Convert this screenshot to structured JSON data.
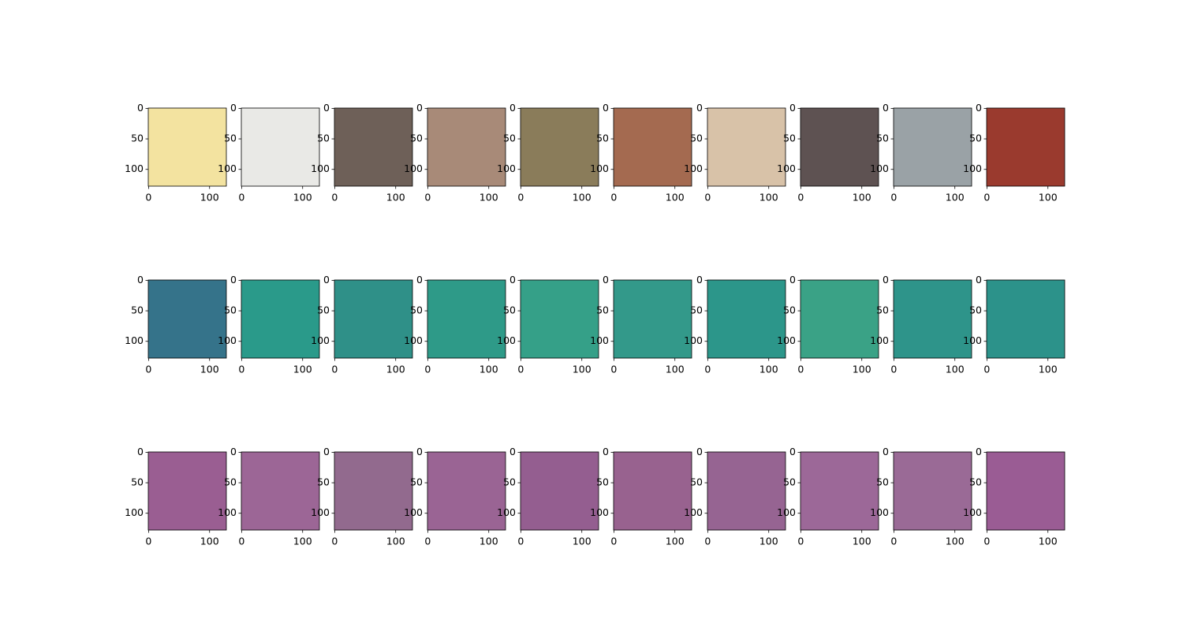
{
  "chart_data": [
    {
      "type": "image",
      "color": "#f3e3a0",
      "xlim": [
        -0.5,
        127.5
      ],
      "ylim": [
        127.5,
        -0.5
      ],
      "xticks": [
        0,
        100
      ],
      "yticks": [
        0,
        50,
        100
      ]
    },
    {
      "type": "image",
      "color": "#e9e9e6",
      "xlim": [
        -0.5,
        127.5
      ],
      "ylim": [
        127.5,
        -0.5
      ],
      "xticks": [
        0,
        100
      ],
      "yticks": [
        0,
        50,
        100
      ]
    },
    {
      "type": "image",
      "color": "#6e6058",
      "xlim": [
        -0.5,
        127.5
      ],
      "ylim": [
        127.5,
        -0.5
      ],
      "xticks": [
        0,
        100
      ],
      "yticks": [
        0,
        50,
        100
      ]
    },
    {
      "type": "image",
      "color": "#a88a78",
      "xlim": [
        -0.5,
        127.5
      ],
      "ylim": [
        127.5,
        -0.5
      ],
      "xticks": [
        0,
        100
      ],
      "yticks": [
        0,
        50,
        100
      ]
    },
    {
      "type": "image",
      "color": "#8a7c5a",
      "xlim": [
        -0.5,
        127.5
      ],
      "ylim": [
        127.5,
        -0.5
      ],
      "xticks": [
        0,
        100
      ],
      "yticks": [
        0,
        50,
        100
      ]
    },
    {
      "type": "image",
      "color": "#a46a50",
      "xlim": [
        -0.5,
        127.5
      ],
      "ylim": [
        127.5,
        -0.5
      ],
      "xticks": [
        0,
        100
      ],
      "yticks": [
        0,
        50,
        100
      ]
    },
    {
      "type": "image",
      "color": "#d8c2a8",
      "xlim": [
        -0.5,
        127.5
      ],
      "ylim": [
        127.5,
        -0.5
      ],
      "xticks": [
        0,
        100
      ],
      "yticks": [
        0,
        50,
        100
      ]
    },
    {
      "type": "image",
      "color": "#5e5252",
      "xlim": [
        -0.5,
        127.5
      ],
      "ylim": [
        127.5,
        -0.5
      ],
      "xticks": [
        0,
        100
      ],
      "yticks": [
        0,
        50,
        100
      ]
    },
    {
      "type": "image",
      "color": "#9aa2a6",
      "xlim": [
        -0.5,
        127.5
      ],
      "ylim": [
        127.5,
        -0.5
      ],
      "xticks": [
        0,
        100
      ],
      "yticks": [
        0,
        50,
        100
      ]
    },
    {
      "type": "image",
      "color": "#9a3a2e",
      "xlim": [
        -0.5,
        127.5
      ],
      "ylim": [
        127.5,
        -0.5
      ],
      "xticks": [
        0,
        100
      ],
      "yticks": [
        0,
        50,
        100
      ]
    },
    {
      "type": "image",
      "color": "#35738a",
      "xlim": [
        -0.5,
        127.5
      ],
      "ylim": [
        127.5,
        -0.5
      ],
      "xticks": [
        0,
        100
      ],
      "yticks": [
        0,
        50,
        100
      ]
    },
    {
      "type": "image",
      "color": "#2a9a8a",
      "xlim": [
        -0.5,
        127.5
      ],
      "ylim": [
        127.5,
        -0.5
      ],
      "xticks": [
        0,
        100
      ],
      "yticks": [
        0,
        50,
        100
      ]
    },
    {
      "type": "image",
      "color": "#2f9088",
      "xlim": [
        -0.5,
        127.5
      ],
      "ylim": [
        127.5,
        -0.5
      ],
      "xticks": [
        0,
        100
      ],
      "yticks": [
        0,
        50,
        100
      ]
    },
    {
      "type": "image",
      "color": "#2e9a88",
      "xlim": [
        -0.5,
        127.5
      ],
      "ylim": [
        127.5,
        -0.5
      ],
      "xticks": [
        0,
        100
      ],
      "yticks": [
        0,
        50,
        100
      ]
    },
    {
      "type": "image",
      "color": "#35a088",
      "xlim": [
        -0.5,
        127.5
      ],
      "ylim": [
        127.5,
        -0.5
      ],
      "xticks": [
        0,
        100
      ],
      "yticks": [
        0,
        50,
        100
      ]
    },
    {
      "type": "image",
      "color": "#33998a",
      "xlim": [
        -0.5,
        127.5
      ],
      "ylim": [
        127.5,
        -0.5
      ],
      "xticks": [
        0,
        100
      ],
      "yticks": [
        0,
        50,
        100
      ]
    },
    {
      "type": "image",
      "color": "#2c968a",
      "xlim": [
        -0.5,
        127.5
      ],
      "ylim": [
        127.5,
        -0.5
      ],
      "xticks": [
        0,
        100
      ],
      "yticks": [
        0,
        50,
        100
      ]
    },
    {
      "type": "image",
      "color": "#3aa286",
      "xlim": [
        -0.5,
        127.5
      ],
      "ylim": [
        127.5,
        -0.5
      ],
      "xticks": [
        0,
        100
      ],
      "yticks": [
        0,
        50,
        100
      ]
    },
    {
      "type": "image",
      "color": "#2e948a",
      "xlim": [
        -0.5,
        127.5
      ],
      "ylim": [
        127.5,
        -0.5
      ],
      "xticks": [
        0,
        100
      ],
      "yticks": [
        0,
        50,
        100
      ]
    },
    {
      "type": "image",
      "color": "#2c928a",
      "xlim": [
        -0.5,
        127.5
      ],
      "ylim": [
        127.5,
        -0.5
      ],
      "xticks": [
        0,
        100
      ],
      "yticks": [
        0,
        50,
        100
      ]
    },
    {
      "type": "image",
      "color": "#9a5e92",
      "xlim": [
        -0.5,
        127.5
      ],
      "ylim": [
        127.5,
        -0.5
      ],
      "xticks": [
        0,
        100
      ],
      "yticks": [
        0,
        50,
        100
      ]
    },
    {
      "type": "image",
      "color": "#9c6696",
      "xlim": [
        -0.5,
        127.5
      ],
      "ylim": [
        127.5,
        -0.5
      ],
      "xticks": [
        0,
        100
      ],
      "yticks": [
        0,
        50,
        100
      ]
    },
    {
      "type": "image",
      "color": "#926a8e",
      "xlim": [
        -0.5,
        127.5
      ],
      "ylim": [
        127.5,
        -0.5
      ],
      "xticks": [
        0,
        100
      ],
      "yticks": [
        0,
        50,
        100
      ]
    },
    {
      "type": "image",
      "color": "#9a6494",
      "xlim": [
        -0.5,
        127.5
      ],
      "ylim": [
        127.5,
        -0.5
      ],
      "xticks": [
        0,
        100
      ],
      "yticks": [
        0,
        50,
        100
      ]
    },
    {
      "type": "image",
      "color": "#945e90",
      "xlim": [
        -0.5,
        127.5
      ],
      "ylim": [
        127.5,
        -0.5
      ],
      "xticks": [
        0,
        100
      ],
      "yticks": [
        0,
        50,
        100
      ]
    },
    {
      "type": "image",
      "color": "#98628f",
      "xlim": [
        -0.5,
        127.5
      ],
      "ylim": [
        127.5,
        -0.5
      ],
      "xticks": [
        0,
        100
      ],
      "yticks": [
        0,
        50,
        100
      ]
    },
    {
      "type": "image",
      "color": "#966492",
      "xlim": [
        -0.5,
        127.5
      ],
      "ylim": [
        127.5,
        -0.5
      ],
      "xticks": [
        0,
        100
      ],
      "yticks": [
        0,
        50,
        100
      ]
    },
    {
      "type": "image",
      "color": "#9c6898",
      "xlim": [
        -0.5,
        127.5
      ],
      "ylim": [
        127.5,
        -0.5
      ],
      "xticks": [
        0,
        100
      ],
      "yticks": [
        0,
        50,
        100
      ]
    },
    {
      "type": "image",
      "color": "#9a6a96",
      "xlim": [
        -0.5,
        127.5
      ],
      "ylim": [
        127.5,
        -0.5
      ],
      "xticks": [
        0,
        100
      ],
      "yticks": [
        0,
        50,
        100
      ]
    },
    {
      "type": "image",
      "color": "#9a5c94",
      "xlim": [
        -0.5,
        127.5
      ],
      "ylim": [
        127.5,
        -0.5
      ],
      "xticks": [
        0,
        100
      ],
      "yticks": [
        0,
        50,
        100
      ]
    }
  ]
}
